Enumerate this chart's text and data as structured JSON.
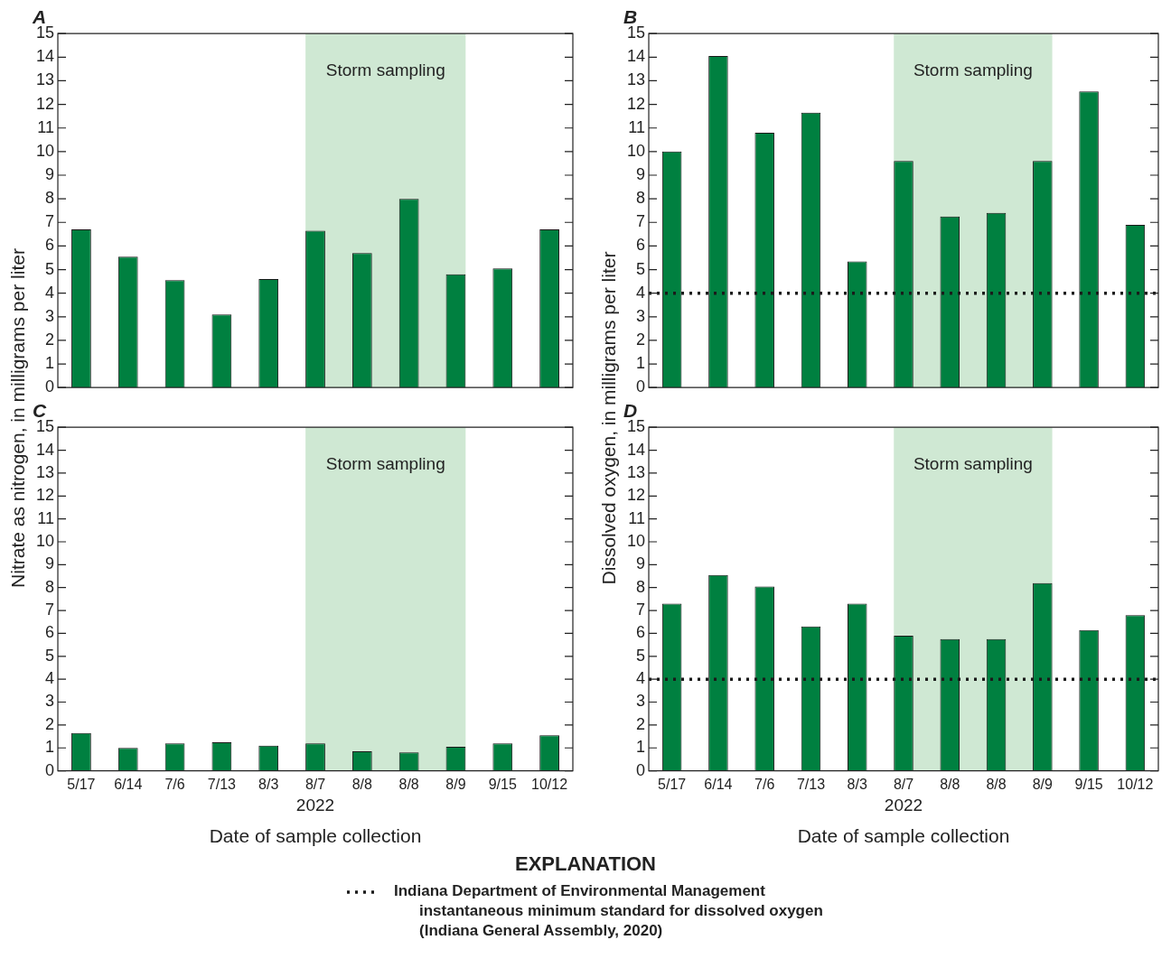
{
  "chart_data": [
    {
      "type": "bar",
      "title": "A",
      "ylabel": "Nitrate as nitrogen, in milligrams per liter",
      "categories": [
        "5/17",
        "6/14",
        "7/6",
        "7/13",
        "8/3",
        "8/7",
        "8/8",
        "8/8",
        "8/9",
        "9/15",
        "10/12"
      ],
      "values": [
        6.7,
        5.55,
        4.55,
        3.1,
        4.6,
        6.65,
        5.7,
        8.0,
        4.8,
        5.05,
        6.7
      ],
      "color": "#008040",
      "ylim": [
        0,
        15
      ],
      "yticks": [
        0,
        1,
        2,
        3,
        4,
        5,
        6,
        7,
        8,
        9,
        10,
        11,
        12,
        13,
        14,
        15
      ],
      "tick_labels": "y",
      "bands": [
        {
          "axis": "x",
          "from": "8/7",
          "to": "8/9",
          "label": "Storm sampling",
          "color": "#cfe8d3"
        }
      ]
    },
    {
      "type": "bar",
      "title": "B",
      "ylabel": "Dissolved oxygen, in milligrams per liter",
      "legend_title": "EXPLANATION",
      "categories": [
        "5/17",
        "6/14",
        "7/6",
        "7/13",
        "8/3",
        "8/7",
        "8/8",
        "8/8",
        "8/9",
        "9/15",
        "10/12"
      ],
      "values": [
        10.0,
        14.05,
        10.8,
        11.65,
        5.35,
        9.6,
        7.25,
        7.4,
        9.6,
        12.55,
        6.9
      ],
      "color": "#008040",
      "ylim": [
        0,
        15
      ],
      "yticks": [
        0,
        1,
        2,
        3,
        4,
        5,
        6,
        7,
        8,
        9,
        10,
        11,
        12,
        13,
        14,
        15
      ],
      "tick_labels": "y",
      "bands": [
        {
          "axis": "x",
          "from": "8/7",
          "to": "8/9",
          "label": "Storm sampling",
          "color": "#cfe8d3"
        }
      ],
      "ref_lines": [
        {
          "axis": "y",
          "value": 4,
          "label": "Indiana Department of Environmental Management instantaneous minimum standard for dissolved oxygen (Indiana General Assembly, 2020)",
          "color": "#1a1a1a",
          "line_style": "dotted"
        }
      ]
    },
    {
      "type": "bar",
      "title": "C",
      "xlabel": "Date of sample collection",
      "annotations": [
        "2022"
      ],
      "categories": [
        "5/17",
        "6/14",
        "7/6",
        "7/13",
        "8/3",
        "8/7",
        "8/8",
        "8/8",
        "8/9",
        "9/15",
        "10/12"
      ],
      "values": [
        1.65,
        1.0,
        1.2,
        1.25,
        1.1,
        1.2,
        0.85,
        0.8,
        1.05,
        1.2,
        1.55
      ],
      "color": "#008040",
      "ylim": [
        0,
        15
      ],
      "yticks": [
        0,
        1,
        2,
        3,
        4,
        5,
        6,
        7,
        8,
        9,
        10,
        11,
        12,
        13,
        14,
        15
      ],
      "bands": [
        {
          "axis": "x",
          "from": "8/7",
          "to": "8/9",
          "label": "Storm sampling",
          "color": "#cfe8d3"
        }
      ]
    },
    {
      "type": "bar",
      "title": "D",
      "xlabel": "Date of sample collection",
      "annotations": [
        "2022"
      ],
      "categories": [
        "5/17",
        "6/14",
        "7/6",
        "7/13",
        "8/3",
        "8/7",
        "8/8",
        "8/8",
        "8/9",
        "9/15",
        "10/12"
      ],
      "values": [
        7.3,
        8.55,
        8.05,
        6.3,
        7.3,
        5.9,
        5.75,
        5.75,
        8.2,
        6.15,
        6.8
      ],
      "color": "#008040",
      "ylim": [
        0,
        15
      ],
      "yticks": [
        0,
        1,
        2,
        3,
        4,
        5,
        6,
        7,
        8,
        9,
        10,
        11,
        12,
        13,
        14,
        15
      ],
      "bands": [
        {
          "axis": "x",
          "from": "8/7",
          "to": "8/9",
          "label": "Storm sampling",
          "color": "#cfe8d3"
        }
      ],
      "ref_lines": [
        {
          "axis": "y",
          "value": 4,
          "color": "#1a1a1a",
          "line_style": "dotted"
        }
      ]
    }
  ]
}
